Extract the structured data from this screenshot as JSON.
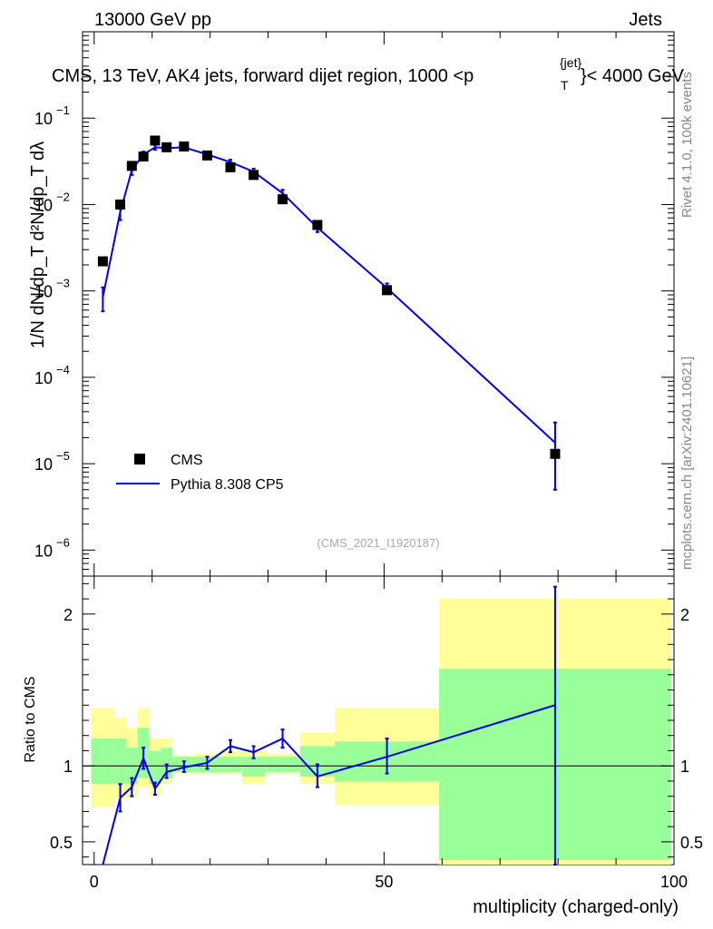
{
  "header": {
    "left": "13000 GeV pp",
    "right": "Jets",
    "title": "CMS, 13 TeV, AK4 jets, forward dijet region, 1000 <p",
    "title_sup": "{jet}",
    "title_sub": "T",
    "title_end": "}< 4000 GeV"
  },
  "side_labels": {
    "rivet": "Rivet 4.1.0,  100k events",
    "mcplots": "mcplots.cern.ch [arXiv:2401.10621]"
  },
  "watermark": "(CMS_2021_I1920187)",
  "ylabel_main": "1/N dN/dp_T d²N/dp_T dλ",
  "ylabel_ratio": "Ratio to CMS",
  "xlabel": "multiplicity (charged-only)",
  "legend": {
    "cms": "CMS",
    "mc": "Pythia 8.308 CP5"
  },
  "chart_data": [
    {
      "type": "scatter",
      "panel": "main",
      "y_scale": "log",
      "xlim": [
        -2,
        100
      ],
      "ylim": [
        5e-07,
        1
      ],
      "x_ticks": [
        0,
        50,
        100
      ],
      "y_ticks": [
        {
          "v": 1e-06,
          "e": "−6"
        },
        {
          "v": 1e-05,
          "e": "−5"
        },
        {
          "v": 0.0001,
          "e": "−4"
        },
        {
          "v": 0.001,
          "e": "−3"
        },
        {
          "v": 0.01,
          "e": "−2"
        },
        {
          "v": 0.1,
          "e": "−1"
        }
      ],
      "series": [
        {
          "name": "CMS",
          "color": "#000000",
          "points": [
            {
              "x": 1.5,
              "y": 0.0022
            },
            {
              "x": 4.5,
              "y": 0.01
            },
            {
              "x": 6.5,
              "y": 0.028
            },
            {
              "x": 8.5,
              "y": 0.036
            },
            {
              "x": 10.5,
              "y": 0.055
            },
            {
              "x": 12.5,
              "y": 0.046
            },
            {
              "x": 15.5,
              "y": 0.047
            },
            {
              "x": 19.5,
              "y": 0.037
            },
            {
              "x": 23.5,
              "y": 0.027
            },
            {
              "x": 27.5,
              "y": 0.022
            },
            {
              "x": 32.5,
              "y": 0.0115
            },
            {
              "x": 38.5,
              "y": 0.0058
            },
            {
              "x": 50.5,
              "y": 0.00102
            },
            {
              "x": 79.5,
              "y": 1.3e-05
            }
          ]
        },
        {
          "name": "Pythia 8.308 CP5",
          "color": "#0000ee",
          "points": [
            {
              "x": 1.5,
              "y": 0.00085,
              "lo": 0.00058,
              "hi": 0.0011
            },
            {
              "x": 4.5,
              "y": 0.0082,
              "lo": 0.0066,
              "hi": 0.0104
            },
            {
              "x": 6.5,
              "y": 0.025,
              "lo": 0.022,
              "hi": 0.028
            },
            {
              "x": 8.5,
              "y": 0.038,
              "lo": 0.035,
              "hi": 0.041
            },
            {
              "x": 10.5,
              "y": 0.046,
              "lo": 0.043,
              "hi": 0.049
            },
            {
              "x": 12.5,
              "y": 0.045,
              "lo": 0.042,
              "hi": 0.048
            },
            {
              "x": 15.5,
              "y": 0.046,
              "lo": 0.044,
              "hi": 0.048
            },
            {
              "x": 19.5,
              "y": 0.038,
              "lo": 0.036,
              "hi": 0.04
            },
            {
              "x": 23.5,
              "y": 0.031,
              "lo": 0.029,
              "hi": 0.033
            },
            {
              "x": 27.5,
              "y": 0.024,
              "lo": 0.022,
              "hi": 0.026
            },
            {
              "x": 32.5,
              "y": 0.0135,
              "lo": 0.0122,
              "hi": 0.0148
            },
            {
              "x": 38.5,
              "y": 0.0054,
              "lo": 0.0048,
              "hi": 0.006
            },
            {
              "x": 50.5,
              "y": 0.00108,
              "lo": 0.00095,
              "hi": 0.00122
            },
            {
              "x": 79.5,
              "y": 1.75e-05,
              "lo": 5e-06,
              "hi": 3e-05
            }
          ]
        }
      ]
    },
    {
      "type": "line",
      "panel": "ratio",
      "ylim": [
        0.35,
        2.25
      ],
      "y_ticks": [
        0.5,
        1,
        2
      ],
      "x_ticks": [
        0,
        50,
        100
      ],
      "xlim": [
        -2,
        100
      ],
      "bands": [
        {
          "x0": -0.5,
          "x1": 3.5,
          "stat_lo": 0.88,
          "stat_hi": 1.18,
          "tot_lo": 0.73,
          "tot_hi": 1.38
        },
        {
          "x0": 3.5,
          "x1": 5.5,
          "stat_lo": 0.88,
          "stat_hi": 1.18,
          "tot_lo": 0.78,
          "tot_hi": 1.32
        },
        {
          "x0": 5.5,
          "x1": 7.5,
          "stat_lo": 0.88,
          "stat_hi": 1.12,
          "tot_lo": 0.8,
          "tot_hi": 1.25
        },
        {
          "x0": 7.5,
          "x1": 9.5,
          "stat_lo": 0.92,
          "stat_hi": 1.25,
          "tot_lo": 0.86,
          "tot_hi": 1.38
        },
        {
          "x0": 9.5,
          "x1": 11.5,
          "stat_lo": 0.88,
          "stat_hi": 1.1,
          "tot_lo": 0.8,
          "tot_hi": 1.18
        },
        {
          "x0": 11.5,
          "x1": 13.5,
          "stat_lo": 0.92,
          "stat_hi": 1.12,
          "tot_lo": 0.88,
          "tot_hi": 1.18
        },
        {
          "x0": 13.5,
          "x1": 17.5,
          "stat_lo": 0.96,
          "stat_hi": 1.06,
          "tot_lo": 0.95,
          "tot_hi": 1.07
        },
        {
          "x0": 17.5,
          "x1": 21.5,
          "stat_lo": 0.96,
          "stat_hi": 1.06,
          "tot_lo": 0.95,
          "tot_hi": 1.08
        },
        {
          "x0": 21.5,
          "x1": 25.5,
          "stat_lo": 0.96,
          "stat_hi": 1.06,
          "tot_lo": 0.95,
          "tot_hi": 1.1
        },
        {
          "x0": 25.5,
          "x1": 29.5,
          "stat_lo": 0.93,
          "stat_hi": 1.06,
          "tot_lo": 0.88,
          "tot_hi": 1.1
        },
        {
          "x0": 29.5,
          "x1": 35.5,
          "stat_lo": 0.96,
          "stat_hi": 1.06,
          "tot_lo": 0.95,
          "tot_hi": 1.08
        },
        {
          "x0": 35.5,
          "x1": 41.5,
          "stat_lo": 0.93,
          "stat_hi": 1.13,
          "tot_lo": 0.88,
          "tot_hi": 1.22
        },
        {
          "x0": 41.5,
          "x1": 59.5,
          "stat_lo": 0.9,
          "stat_hi": 1.16,
          "tot_lo": 0.74,
          "tot_hi": 1.38
        },
        {
          "x0": 59.5,
          "x1": 99.5,
          "stat_lo": 0.38,
          "stat_hi": 1.64,
          "tot_lo": 0.35,
          "tot_hi": 2.1
        }
      ],
      "ratio_points": [
        {
          "x": 1.5,
          "y": 0.35,
          "lo": 0.35,
          "hi": 0.35
        },
        {
          "x": 4.5,
          "y": 0.79,
          "lo": 0.7,
          "hi": 0.88
        },
        {
          "x": 6.5,
          "y": 0.86,
          "lo": 0.8,
          "hi": 0.92
        },
        {
          "x": 8.5,
          "y": 1.05,
          "lo": 0.98,
          "hi": 1.12
        },
        {
          "x": 10.5,
          "y": 0.85,
          "lo": 0.81,
          "hi": 0.89
        },
        {
          "x": 12.5,
          "y": 0.96,
          "lo": 0.92,
          "hi": 1.01
        },
        {
          "x": 15.5,
          "y": 0.99,
          "lo": 0.96,
          "hi": 1.03
        },
        {
          "x": 19.5,
          "y": 1.02,
          "lo": 0.98,
          "hi": 1.06
        },
        {
          "x": 23.5,
          "y": 1.13,
          "lo": 1.09,
          "hi": 1.17
        },
        {
          "x": 27.5,
          "y": 1.09,
          "lo": 1.05,
          "hi": 1.13
        },
        {
          "x": 32.5,
          "y": 1.18,
          "lo": 1.12,
          "hi": 1.24
        },
        {
          "x": 38.5,
          "y": 0.93,
          "lo": 0.86,
          "hi": 1.01
        },
        {
          "x": 50.5,
          "y": 1.06,
          "lo": 0.95,
          "hi": 1.18
        },
        {
          "x": 79.5,
          "y": 1.4,
          "lo": 0.35,
          "hi": 2.18
        }
      ]
    }
  ]
}
